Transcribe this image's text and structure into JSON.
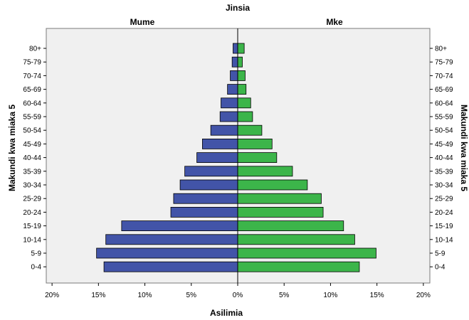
{
  "chart_data": {
    "type": "bar",
    "title": "Jinsia",
    "xlabel": "Asilimia",
    "ylabel": "Makundi kwa miaka 5",
    "xlim": [
      -20,
      20
    ],
    "xticks": [
      "20%",
      "15%",
      "10%",
      "5%",
      "0%",
      "5%",
      "10%",
      "15%",
      "20%"
    ],
    "categories": [
      "80+",
      "75-79",
      "70-74",
      "65-69",
      "60-64",
      "55-59",
      "50-54",
      "45-49",
      "40-44",
      "35-39",
      "30-34",
      "25-29",
      "20-24",
      "15-19",
      "10-14",
      "5-9",
      "0-4"
    ],
    "series": [
      {
        "name": "Mume",
        "color": "#4254a8",
        "values": [
          0.5,
          0.6,
          0.8,
          1.1,
          1.8,
          1.9,
          2.9,
          3.8,
          4.4,
          5.7,
          6.2,
          6.9,
          7.2,
          12.5,
          14.2,
          15.2,
          14.4
        ]
      },
      {
        "name": "Mke",
        "color": "#3cb54a",
        "values": [
          0.7,
          0.5,
          0.8,
          0.9,
          1.4,
          1.6,
          2.6,
          3.7,
          4.2,
          5.9,
          7.5,
          9.0,
          9.2,
          11.4,
          12.6,
          14.9,
          13.1
        ]
      }
    ],
    "grid": false,
    "legend": "top panel labels"
  }
}
